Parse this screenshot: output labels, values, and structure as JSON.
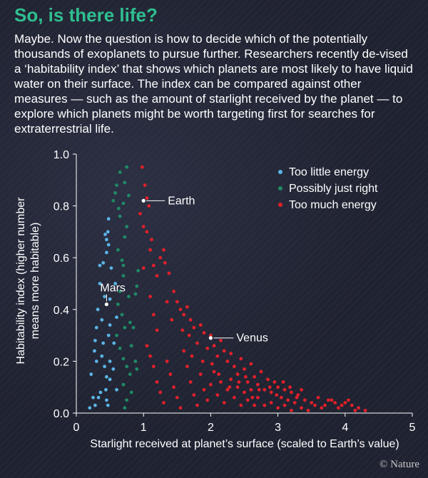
{
  "header": {
    "title": "So, is there life?",
    "intro": "Maybe. Now the question is how to decide which of the potentially thousands of exoplanets to pursue further. Researchers recently de-vised a ‘habitability index’ that shows which planets are most likely to have liquid water on their surface. The index can be compared against other measures — such as the amount of starlight received by the planet — to explore which planets might be worth targeting first for searches for extraterrestrial life."
  },
  "credit": "© Nature",
  "colors": {
    "too_little": "#5ab4e6",
    "just_right": "#1f8a66",
    "too_much": "#e0202a",
    "highlight": "#ffffff",
    "axis": "#ffffff"
  },
  "chart_data": {
    "type": "scatter",
    "xlabel": "Starlight received at planet’s surface (scaled to Earth’s value)",
    "ylabel": "Habitability index (higher number means more habitable)",
    "xlim": [
      0,
      5
    ],
    "ylim": [
      0,
      1.0
    ],
    "xticks": [
      0,
      1,
      2,
      3,
      4,
      5
    ],
    "yticks": [
      "0.0",
      "0.2",
      "0.4",
      "0.6",
      "0.8",
      "1.0"
    ],
    "legend_position": "top-right",
    "series": [
      {
        "name": "Too little energy",
        "color_key": "too_little",
        "points": [
          [
            0.2,
            0.02
          ],
          [
            0.25,
            0.06
          ],
          [
            0.28,
            0.03
          ],
          [
            0.33,
            0.06
          ],
          [
            0.22,
            0.15
          ],
          [
            0.3,
            0.2
          ],
          [
            0.28,
            0.28
          ],
          [
            0.3,
            0.33
          ],
          [
            0.32,
            0.4
          ],
          [
            0.35,
            0.5
          ],
          [
            0.35,
            0.57
          ],
          [
            0.38,
            0.22
          ],
          [
            0.4,
            0.27
          ],
          [
            0.42,
            0.18
          ],
          [
            0.42,
            0.45
          ],
          [
            0.45,
            0.05
          ],
          [
            0.45,
            0.14
          ],
          [
            0.44,
            0.09
          ],
          [
            0.4,
            0.58
          ],
          [
            0.45,
            0.62
          ],
          [
            0.45,
            0.67
          ],
          [
            0.47,
            0.7
          ],
          [
            0.48,
            0.75
          ],
          [
            0.48,
            0.3
          ],
          [
            0.5,
            0.34
          ],
          [
            0.5,
            0.44
          ],
          [
            0.5,
            0.2
          ],
          [
            0.48,
            0.65
          ],
          [
            0.5,
            0.13
          ],
          [
            0.52,
            0.56
          ],
          [
            0.55,
            0.17
          ],
          [
            0.58,
            0.5
          ],
          [
            0.6,
            0.37
          ],
          [
            0.6,
            0.09
          ],
          [
            0.38,
            0.36
          ],
          [
            0.27,
            0.24
          ],
          [
            0.43,
            0.69
          ],
          [
            0.47,
            0.03
          ],
          [
            0.36,
            0.08
          ],
          [
            0.56,
            0.27
          ]
        ]
      },
      {
        "name": "Possibly just right",
        "color_key": "just_right",
        "points": [
          [
            0.55,
            0.82
          ],
          [
            0.58,
            0.85
          ],
          [
            0.6,
            0.88
          ],
          [
            0.63,
            0.79
          ],
          [
            0.65,
            0.93
          ],
          [
            0.7,
            0.81
          ],
          [
            0.72,
            0.89
          ],
          [
            0.75,
            0.95
          ],
          [
            0.78,
            0.84
          ],
          [
            0.65,
            0.76
          ],
          [
            0.68,
            0.59
          ],
          [
            0.7,
            0.57
          ],
          [
            0.72,
            0.68
          ],
          [
            0.75,
            0.72
          ],
          [
            0.7,
            0.53
          ],
          [
            0.65,
            0.47
          ],
          [
            0.62,
            0.42
          ],
          [
            0.68,
            0.38
          ],
          [
            0.72,
            0.33
          ],
          [
            0.8,
            0.35
          ],
          [
            0.85,
            0.33
          ],
          [
            0.6,
            0.3
          ],
          [
            0.65,
            0.25
          ],
          [
            0.7,
            0.21
          ],
          [
            0.75,
            0.18
          ],
          [
            0.8,
            0.15
          ],
          [
            0.82,
            0.26
          ],
          [
            0.88,
            0.2
          ],
          [
            0.9,
            0.17
          ],
          [
            0.88,
            0.46
          ],
          [
            0.9,
            0.49
          ],
          [
            0.7,
            0.11
          ],
          [
            0.75,
            0.05
          ],
          [
            0.82,
            0.08
          ],
          [
            0.92,
            0.55
          ],
          [
            0.62,
            0.63
          ],
          [
            0.78,
            0.45
          ],
          [
            0.72,
            0.02
          ]
        ]
      },
      {
        "name": "Too much energy",
        "color_key": "too_much",
        "points": [
          [
            0.98,
            0.95
          ],
          [
            1.02,
            0.88
          ],
          [
            1.05,
            0.83
          ],
          [
            1.08,
            0.8
          ],
          [
            0.95,
            0.77
          ],
          [
            1.0,
            0.72
          ],
          [
            1.05,
            0.7
          ],
          [
            1.1,
            0.63
          ],
          [
            1.15,
            0.57
          ],
          [
            1.2,
            0.53
          ],
          [
            1.25,
            0.6
          ],
          [
            1.3,
            0.63
          ],
          [
            1.32,
            0.58
          ],
          [
            1.38,
            0.54
          ],
          [
            1.45,
            0.47
          ],
          [
            1.5,
            0.43
          ],
          [
            1.55,
            0.4
          ],
          [
            1.6,
            0.38
          ],
          [
            1.65,
            0.41
          ],
          [
            1.7,
            0.36
          ],
          [
            1.75,
            0.33
          ],
          [
            1.68,
            0.3
          ],
          [
            1.8,
            0.27
          ],
          [
            1.85,
            0.34
          ],
          [
            1.9,
            0.31
          ],
          [
            1.95,
            0.25
          ],
          [
            2.0,
            0.3
          ],
          [
            2.05,
            0.26
          ],
          [
            2.1,
            0.22
          ],
          [
            2.15,
            0.28
          ],
          [
            2.2,
            0.24
          ],
          [
            2.25,
            0.2
          ],
          [
            2.3,
            0.23
          ],
          [
            2.35,
            0.18
          ],
          [
            2.4,
            0.15
          ],
          [
            2.45,
            0.21
          ],
          [
            2.5,
            0.17
          ],
          [
            2.55,
            0.12
          ],
          [
            2.6,
            0.19
          ],
          [
            2.65,
            0.14
          ],
          [
            2.7,
            0.11
          ],
          [
            2.75,
            0.16
          ],
          [
            2.8,
            0.09
          ],
          [
            2.85,
            0.13
          ],
          [
            2.9,
            0.08
          ],
          [
            2.95,
            0.12
          ],
          [
            3.0,
            0.1
          ],
          [
            3.05,
            0.06
          ],
          [
            3.1,
            0.09
          ],
          [
            3.15,
            0.05
          ],
          [
            3.2,
            0.08
          ],
          [
            3.25,
            0.04
          ],
          [
            3.3,
            0.07
          ],
          [
            3.4,
            0.05
          ],
          [
            3.5,
            0.04
          ],
          [
            3.6,
            0.06
          ],
          [
            3.7,
            0.03
          ],
          [
            3.8,
            0.05
          ],
          [
            3.9,
            0.02
          ],
          [
            4.0,
            0.04
          ],
          [
            4.1,
            0.03
          ],
          [
            4.2,
            0.02
          ],
          [
            4.3,
            0.01
          ],
          [
            1.1,
            0.45
          ],
          [
            1.15,
            0.38
          ],
          [
            1.2,
            0.32
          ],
          [
            1.05,
            0.26
          ],
          [
            1.1,
            0.22
          ],
          [
            1.15,
            0.18
          ],
          [
            1.2,
            0.12
          ],
          [
            1.25,
            0.08
          ],
          [
            1.3,
            0.04
          ],
          [
            1.35,
            0.2
          ],
          [
            1.4,
            0.15
          ],
          [
            1.45,
            0.1
          ],
          [
            1.5,
            0.06
          ],
          [
            1.55,
            0.02
          ],
          [
            1.6,
            0.24
          ],
          [
            1.65,
            0.18
          ],
          [
            1.7,
            0.12
          ],
          [
            1.75,
            0.07
          ],
          [
            1.8,
            0.03
          ],
          [
            1.85,
            0.15
          ],
          [
            1.9,
            0.09
          ],
          [
            1.95,
            0.05
          ],
          [
            2.0,
            0.11
          ],
          [
            2.05,
            0.16
          ],
          [
            2.1,
            0.07
          ],
          [
            2.15,
            0.12
          ],
          [
            2.2,
            0.04
          ],
          [
            2.25,
            0.09
          ],
          [
            2.3,
            0.13
          ],
          [
            2.35,
            0.06
          ],
          [
            2.4,
            0.1
          ],
          [
            2.45,
            0.03
          ],
          [
            2.5,
            0.08
          ],
          [
            2.55,
            0.05
          ],
          [
            2.6,
            0.09
          ],
          [
            2.65,
            0.03
          ],
          [
            2.7,
            0.06
          ],
          [
            2.8,
            0.03
          ],
          [
            2.9,
            0.04
          ],
          [
            3.0,
            0.02
          ],
          [
            3.1,
            0.03
          ],
          [
            3.2,
            0.01
          ],
          [
            3.35,
            0.02
          ],
          [
            3.45,
            0.01
          ],
          [
            1.0,
            0.56
          ],
          [
            1.12,
            0.67
          ],
          [
            1.35,
            0.43
          ],
          [
            1.42,
            0.36
          ],
          [
            1.58,
            0.32
          ],
          [
            1.72,
            0.22
          ],
          [
            1.88,
            0.2
          ],
          [
            2.02,
            0.19
          ],
          [
            2.12,
            0.15
          ],
          [
            2.28,
            0.1
          ],
          [
            2.42,
            0.12
          ],
          [
            2.52,
            0.14
          ],
          [
            2.62,
            0.06
          ],
          [
            2.72,
            0.09
          ],
          [
            2.88,
            0.1
          ],
          [
            2.98,
            0.07
          ],
          [
            3.08,
            0.12
          ],
          [
            3.18,
            0.1
          ],
          [
            3.28,
            0.06
          ],
          [
            3.35,
            0.09
          ],
          [
            3.55,
            0.03
          ],
          [
            3.65,
            0.02
          ],
          [
            3.75,
            0.05
          ],
          [
            3.85,
            0.04
          ],
          [
            3.95,
            0.03
          ],
          [
            4.05,
            0.05
          ],
          [
            4.15,
            0.01
          ]
        ]
      }
    ],
    "annotations": [
      {
        "label": "Earth",
        "x": 1.0,
        "y": 0.82
      },
      {
        "label": "Mars",
        "x": 0.45,
        "y": 0.42
      },
      {
        "label": "Venus",
        "x": 2.0,
        "y": 0.29
      }
    ]
  }
}
